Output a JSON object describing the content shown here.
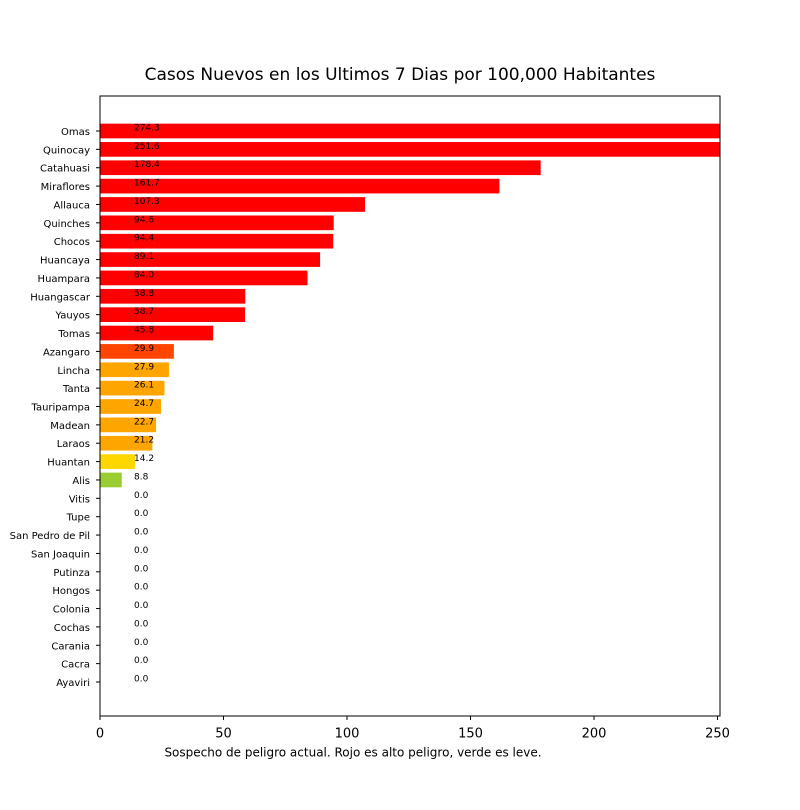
{
  "chart_data": {
    "type": "barh",
    "title": "Casos Nuevos en los Ultimos 7 Dias por 100,000 Habitantes",
    "x_label": "Sospecho de peligro actual. Rojo es alto peligro, verde es leve.",
    "categories": [
      "Omas",
      "Quinocay",
      "Catahuasi",
      "Miraflores",
      "Allauca",
      "Quinches",
      "Chocos",
      "Huancaya",
      "Huampara",
      "Huangascar",
      "Yauyos",
      "Tomas",
      "Azangaro",
      "Lincha",
      "Tanta",
      "Tauripampa",
      "Madean",
      "Laraos",
      "Huantan",
      "Alis",
      "Vitis",
      "Tupe",
      "San Pedro de Pil",
      "San Joaquin",
      "Putinza",
      "Hongos",
      "Colonia",
      "Cochas",
      "Carania",
      "Cacra",
      "Ayaviri"
    ],
    "values": [
      274.3,
      251.6,
      178.4,
      161.7,
      107.3,
      94.6,
      94.4,
      89.1,
      84.0,
      58.8,
      58.7,
      45.8,
      29.9,
      27.9,
      26.1,
      24.7,
      22.7,
      21.2,
      14.2,
      8.8,
      0,
      0,
      0,
      0,
      0,
      0,
      0,
      0,
      0,
      0,
      0
    ],
    "value_labels": [
      "274.3",
      "251.6",
      "178.4",
      "161.7",
      "107.3",
      "94.6",
      "94.4",
      "89.1",
      "84.0",
      "58.8",
      "58.7",
      "45.8",
      "29.9",
      "27.9",
      "26.1",
      "24.7",
      "22.7",
      "21.2",
      "14.2",
      "8.8",
      "0.0",
      "0.0",
      "0.0",
      "0.0",
      "0.0",
      "0.0",
      "0.0",
      "0.0",
      "0.0",
      "0.0",
      "0.0"
    ],
    "colors": [
      "#ff0000",
      "#ff0000",
      "#ff0000",
      "#ff0000",
      "#ff0000",
      "#ff0000",
      "#ff0000",
      "#ff0000",
      "#ff0000",
      "#ff0000",
      "#ff0000",
      "#ff0000",
      "#ff4500",
      "#ffa500",
      "#ffa500",
      "#ffa500",
      "#ffa500",
      "#ffa500",
      "#ffd700",
      "#9acd32",
      "#9acd32",
      "#9acd32",
      "#9acd32",
      "#9acd32",
      "#9acd32",
      "#9acd32",
      "#9acd32",
      "#9acd32",
      "#9acd32",
      "#9acd32",
      "#9acd32"
    ],
    "xlim": [
      0,
      251
    ],
    "xticks": [
      0,
      50,
      100,
      150,
      200,
      250
    ]
  }
}
